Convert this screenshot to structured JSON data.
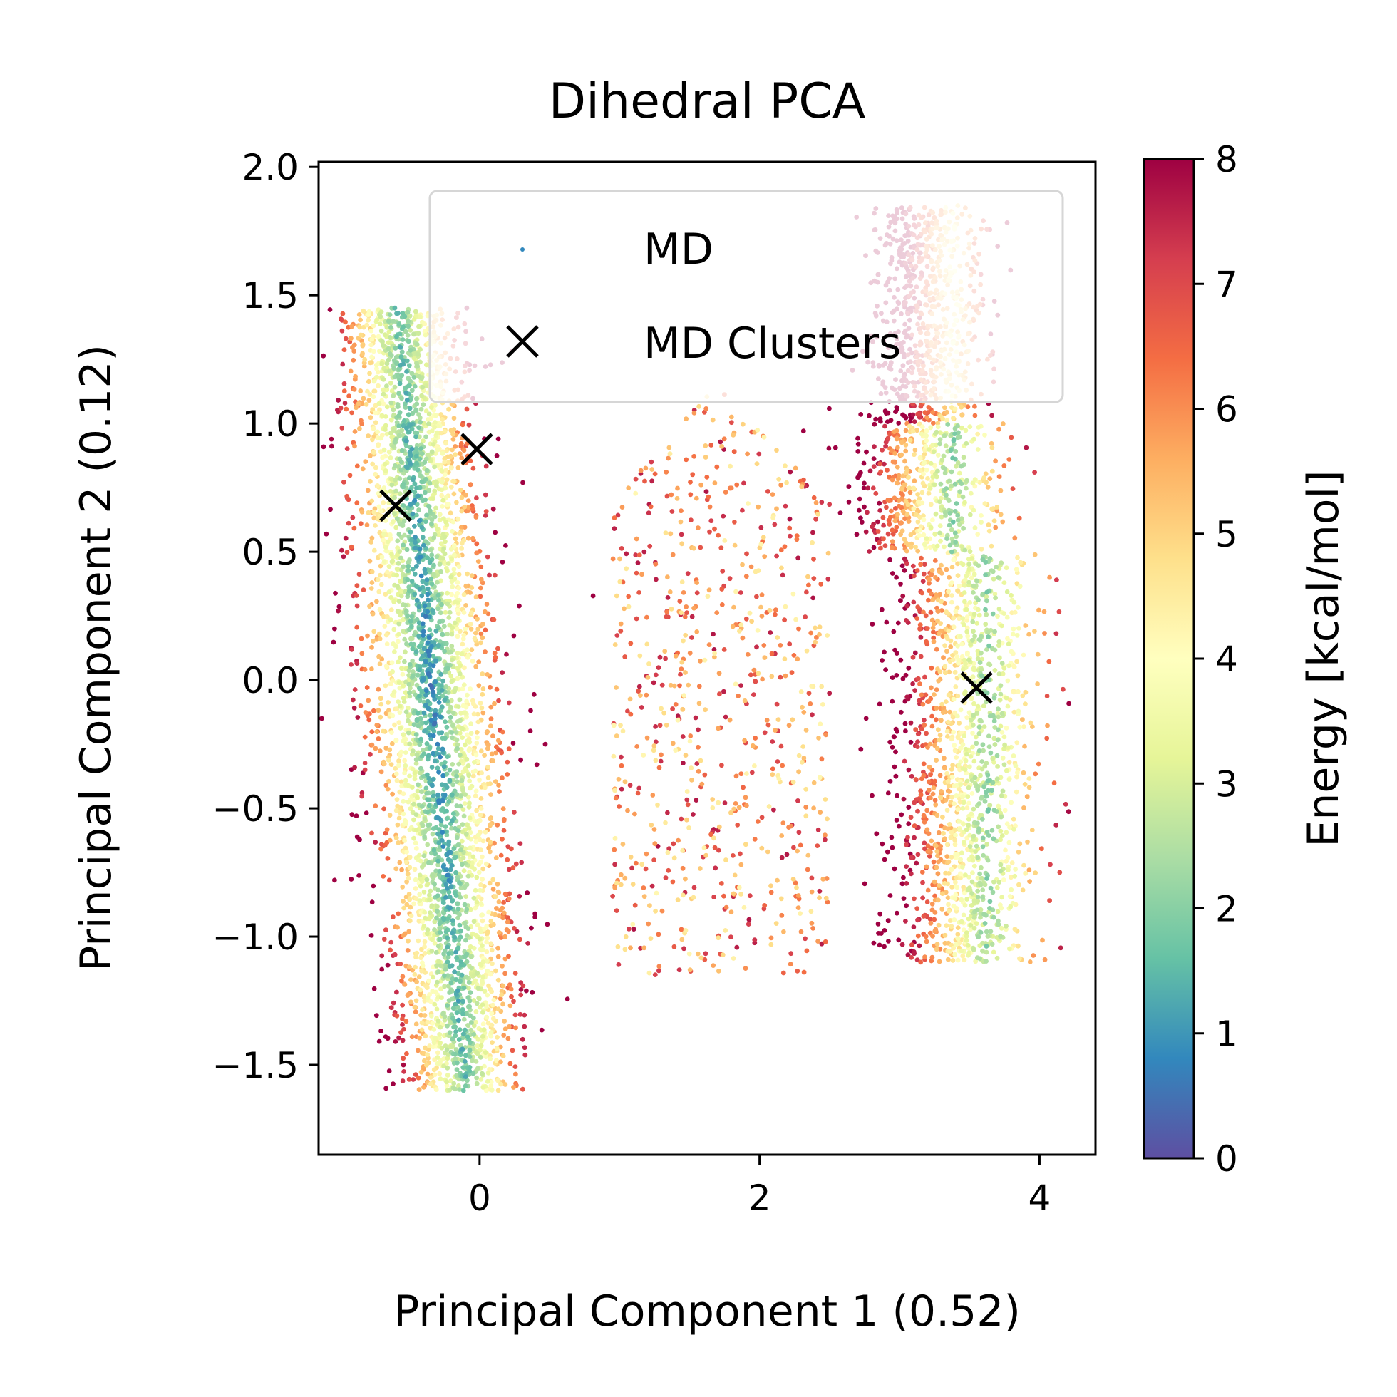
{
  "chart_data": {
    "type": "scatter",
    "title": "Dihedral PCA",
    "xlabel": "Principal Component 1 (0.52)",
    "ylabel": "Principal Component 2 (0.12)",
    "xlim": [
      -1.15,
      4.4
    ],
    "ylim": [
      -1.85,
      2.02
    ],
    "x_ticks": [
      0,
      2,
      4
    ],
    "x_tick_labels": [
      "0",
      "2",
      "4"
    ],
    "y_ticks": [
      -1.5,
      -1.0,
      -0.5,
      0.0,
      0.5,
      1.0,
      1.5,
      2.0
    ],
    "y_tick_labels": [
      "−1.5",
      "−1.0",
      "−0.5",
      "0.0",
      "0.5",
      "1.0",
      "1.5",
      "2.0"
    ],
    "grid": false,
    "legend": {
      "placement": "upper-right",
      "entries": [
        "MD",
        "MD Clusters"
      ]
    },
    "colorbar": {
      "label": "Energy [kcal/mol]",
      "range": [
        0,
        8
      ],
      "ticks": [
        0,
        1,
        2,
        3,
        4,
        5,
        6,
        7,
        8
      ],
      "tick_labels": [
        "0",
        "1",
        "2",
        "3",
        "4",
        "5",
        "6",
        "7",
        "8"
      ],
      "colormap": "Spectral_r"
    },
    "series": [
      {
        "name": "MD",
        "marker": "point",
        "colored_by": "energy",
        "regions": [
          {
            "x": [
              -0.85,
              0.65
            ],
            "y": [
              -1.6,
              1.45
            ],
            "energy_min": 0.2,
            "energy_max": 7.5
          },
          {
            "x": [
              0.9,
              2.5
            ],
            "y": [
              -1.2,
              1.2
            ],
            "energy_min": 3.5,
            "energy_max": 7.8
          },
          {
            "x": [
              2.6,
              4.1
            ],
            "y": [
              -1.1,
              1.85
            ],
            "energy_min": 1.5,
            "energy_max": 7.8
          }
        ]
      },
      {
        "name": "MD Clusters",
        "marker": "x",
        "color": "#000000",
        "points": [
          {
            "x": -0.6,
            "y": 0.68
          },
          {
            "x": -0.02,
            "y": 0.9
          },
          {
            "x": 3.55,
            "y": -0.03
          }
        ]
      }
    ]
  },
  "colors": {
    "spectral_r": [
      "#5e4fa2",
      "#3288bd",
      "#66c2a5",
      "#abdda4",
      "#e6f598",
      "#ffffbf",
      "#fee08b",
      "#fdae61",
      "#f46d43",
      "#d53e4f",
      "#9e0142"
    ],
    "axis": "#000000",
    "background": "#ffffff"
  }
}
